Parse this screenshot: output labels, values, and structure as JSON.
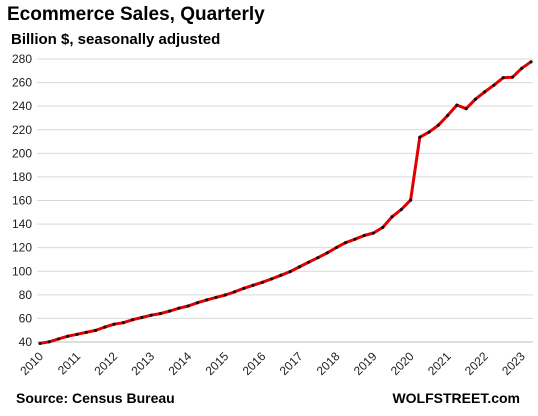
{
  "chart_data": {
    "type": "line",
    "title": "Ecommerce Sales, Quarterly",
    "subtitle": "Billion $, seasonally adjusted",
    "xlabel": "",
    "ylabel": "",
    "ylim": [
      40,
      280
    ],
    "yticks": [
      40,
      60,
      80,
      100,
      120,
      140,
      160,
      180,
      200,
      220,
      240,
      260,
      280
    ],
    "x_tick_labels": [
      "2010",
      "2011",
      "2012",
      "2013",
      "2014",
      "2015",
      "2016",
      "2017",
      "2018",
      "2019",
      "2020",
      "2021",
      "2022",
      "2023"
    ],
    "grid": "horizontal",
    "line_color": "#e00000",
    "marker_color": "#111111",
    "series": [
      {
        "values": [
          38.8,
          40.2,
          42.6,
          44.9,
          46.5,
          48.2,
          49.8,
          52.6,
          55.1,
          56.4,
          58.9,
          60.8,
          62.7,
          64.1,
          66.2,
          68.7,
          70.5,
          73.3,
          75.7,
          77.8,
          79.9,
          82.5,
          85.5,
          88.1,
          90.6,
          93.5,
          96.6,
          99.7,
          103.7,
          107.7,
          111.5,
          115.6,
          120.1,
          124.3,
          127.2,
          130.3,
          132.4,
          137.2,
          146.2,
          152.4,
          160.3,
          213.7,
          218.0,
          223.9,
          232.1,
          240.9,
          237.9,
          245.9,
          252.1,
          257.8,
          264.1,
          264.6,
          272.1,
          277.6
        ]
      }
    ]
  },
  "footer": {
    "source": "Source: Census Bureau",
    "brand": "WOLFSTREET.com"
  }
}
